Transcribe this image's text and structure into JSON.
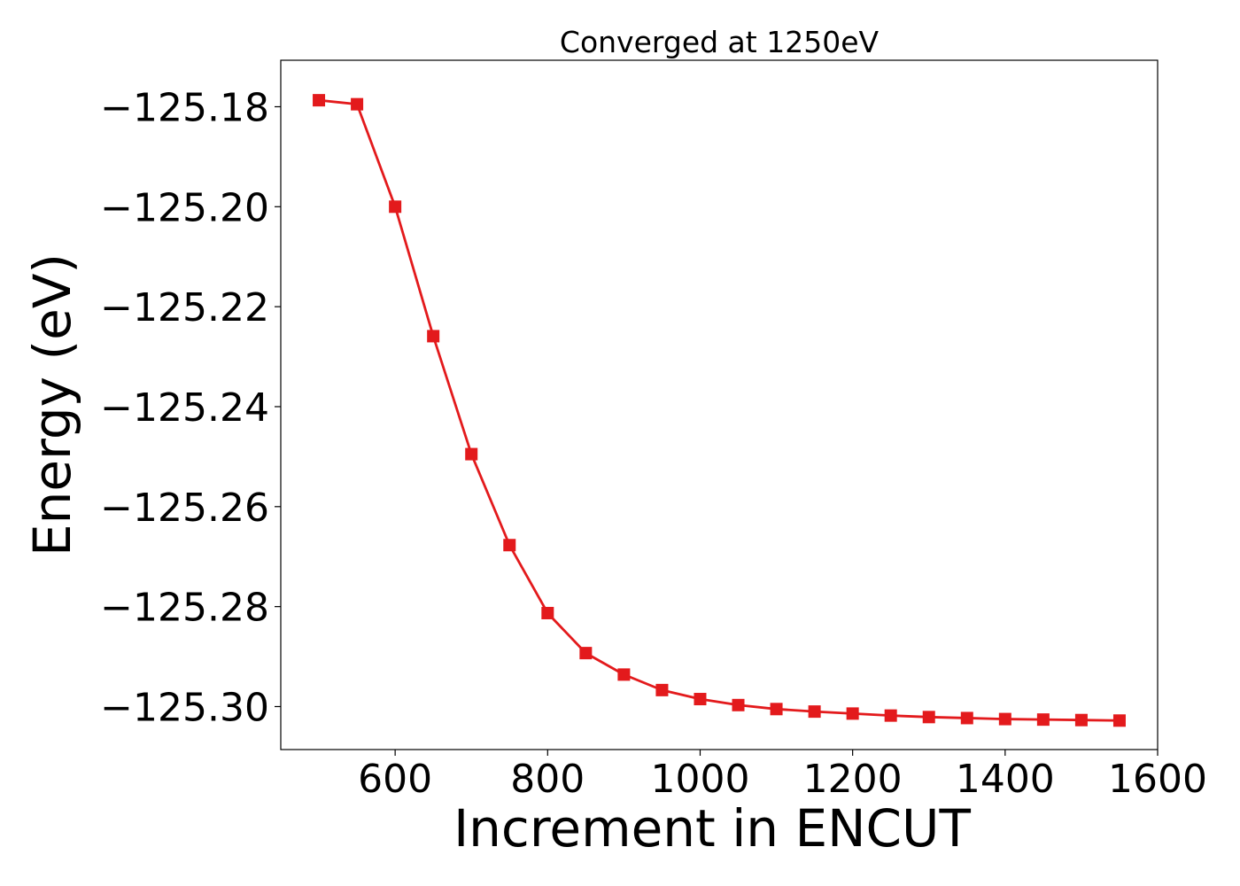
{
  "chart_data": {
    "type": "line",
    "title": "Converged at 1250eV",
    "xlabel": "Increment in ENCUT",
    "ylabel": "Energy (eV)",
    "xlim": [
      450,
      1600
    ],
    "ylim": [
      -125.3086,
      -125.1707
    ],
    "x_ticks": [
      600,
      800,
      1000,
      1200,
      1400,
      1600
    ],
    "x_tick_labels": [
      "600",
      "800",
      "1000",
      "1200",
      "1400",
      "1600"
    ],
    "y_ticks": [
      -125.18,
      -125.2,
      -125.22,
      -125.24,
      -125.26,
      -125.28,
      -125.3
    ],
    "y_tick_labels": [
      "−125.18",
      "−125.20",
      "−125.22",
      "−125.24",
      "−125.26",
      "−125.28",
      "−125.30"
    ],
    "grid": false,
    "marker": "square",
    "series": [
      {
        "color": "#e31a1c",
        "x": [
          500,
          550,
          600,
          650,
          700,
          750,
          800,
          850,
          900,
          950,
          1000,
          1050,
          1100,
          1150,
          1200,
          1250,
          1300,
          1350,
          1400,
          1450,
          1500,
          1550
        ],
        "y": [
          -125.1787,
          -125.1795,
          -125.2,
          -125.2259,
          -125.2495,
          -125.2677,
          -125.2813,
          -125.2893,
          -125.2936,
          -125.2967,
          -125.2985,
          -125.2997,
          -125.3005,
          -125.301,
          -125.3014,
          -125.3018,
          -125.3021,
          -125.3023,
          -125.3025,
          -125.3026,
          -125.3027,
          -125.3028
        ]
      }
    ]
  }
}
